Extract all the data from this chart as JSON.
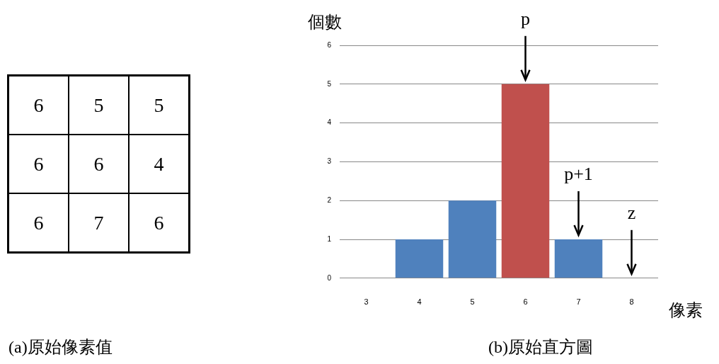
{
  "chart_data": [
    {
      "type": "heatmap",
      "title": "(a)原始像素值",
      "categories": [
        null,
        null,
        null
      ],
      "y_categories": [
        null,
        null,
        null
      ],
      "cells": [
        [
          6,
          5,
          5
        ],
        [
          6,
          6,
          4
        ],
        [
          6,
          7,
          6
        ]
      ],
      "data_labels": true
    },
    {
      "type": "bar",
      "title": "(b)原始直方圖",
      "xlabel": "像素",
      "ylabel": "個數",
      "categories": [
        "3",
        "4",
        "5",
        "6",
        "7",
        "8"
      ],
      "values": [
        0,
        1,
        2,
        5,
        1,
        0
      ],
      "colors": [
        "#4f81bd",
        "#4f81bd",
        "#4f81bd",
        "#c0504d",
        "#4f81bd",
        "#4f81bd"
      ],
      "ylim": [
        0,
        6
      ],
      "yticks": [
        0,
        1,
        2,
        3,
        4,
        5,
        6
      ],
      "grid": "y",
      "legend": false,
      "annotations": [
        {
          "text": "p",
          "x": "6",
          "y": 5
        },
        {
          "text": "p+1",
          "x": "7",
          "y": 1
        },
        {
          "text": "z",
          "x": "8",
          "y": 0
        }
      ]
    }
  ]
}
